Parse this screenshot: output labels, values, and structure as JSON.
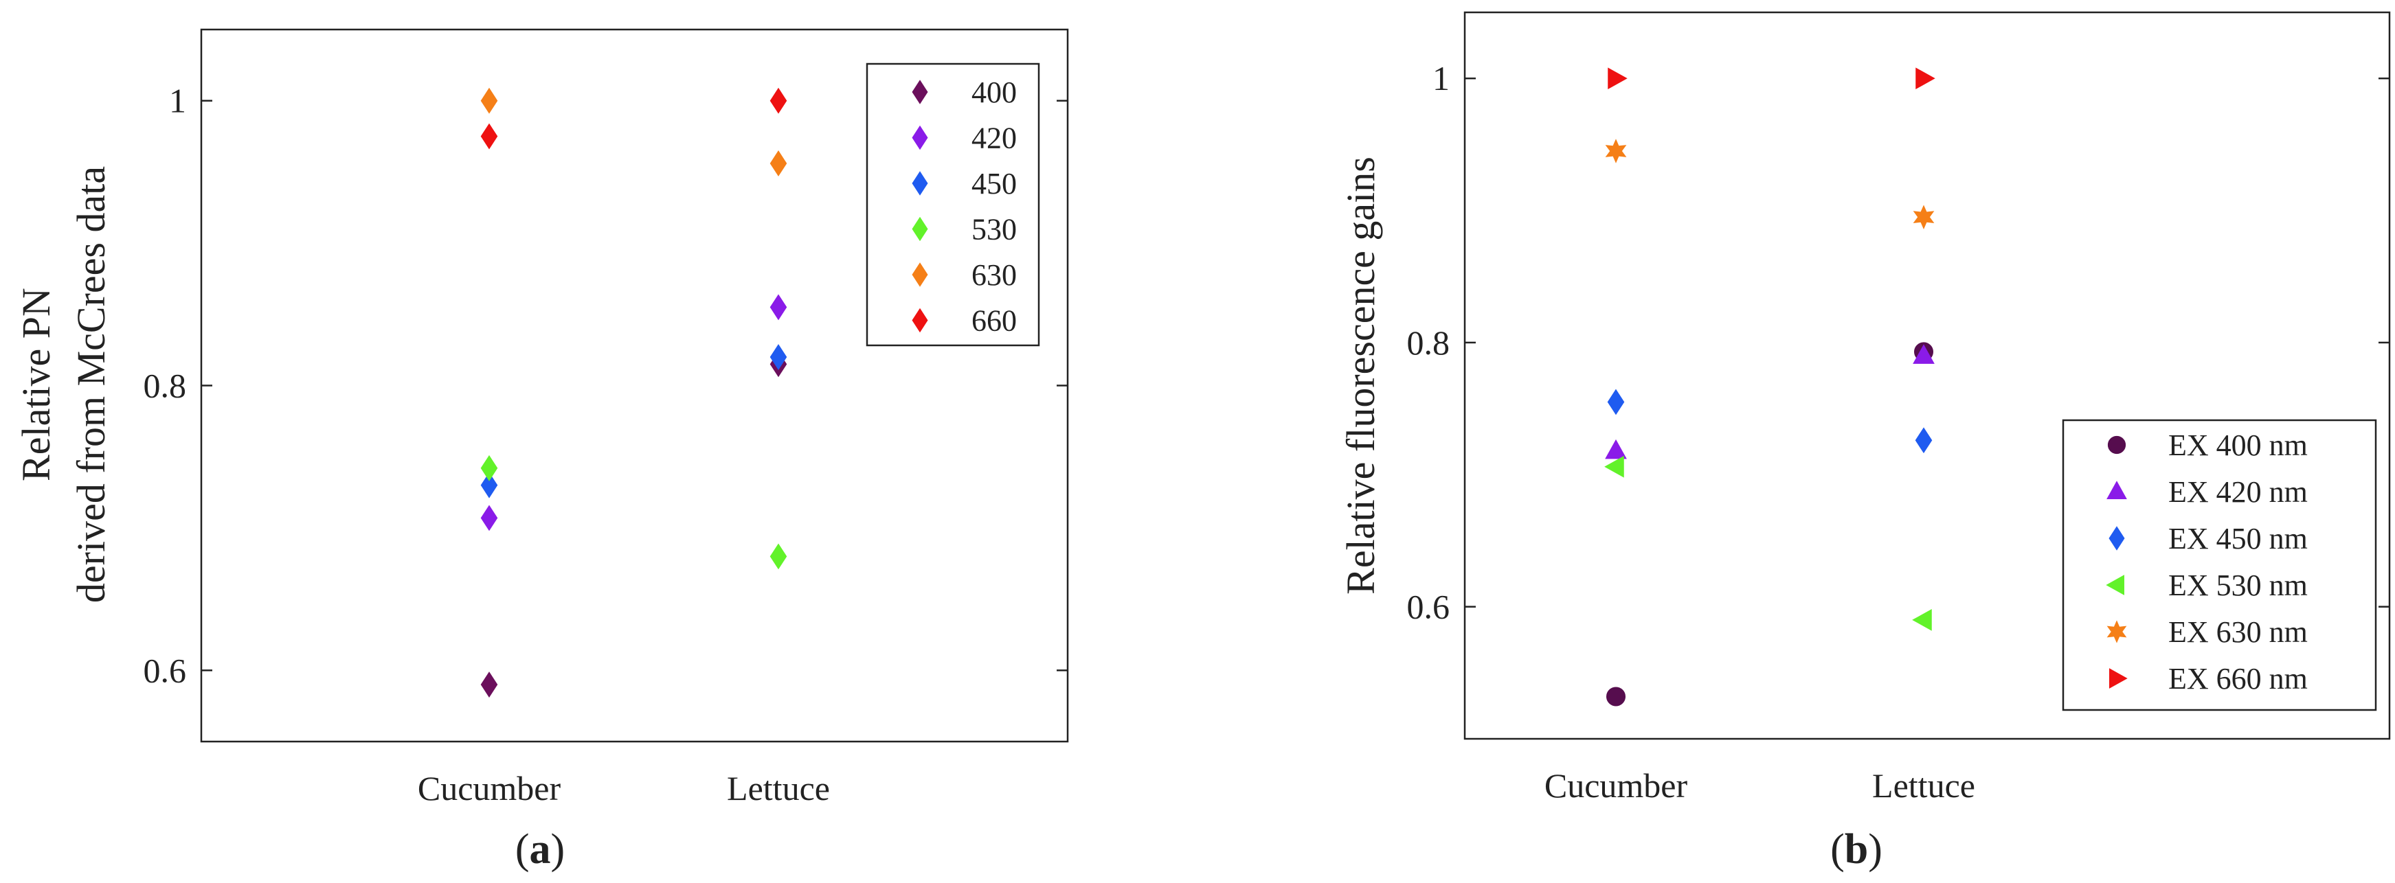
{
  "chart_data": [
    {
      "id": "a",
      "type": "scatter",
      "panel_label": "a",
      "categories": [
        "Cucumber",
        "Lettuce"
      ],
      "ylabel": [
        "Relative PN",
        "derived from McCrees data"
      ],
      "ylim": [
        0.55,
        1.05
      ],
      "yticks": [
        0.6,
        0.8,
        1
      ],
      "ytick_labels": [
        "0.6",
        "0.8",
        "1"
      ],
      "legend_position": "top-right",
      "series": [
        {
          "name": "400",
          "marker": "diamond",
          "color": "#6b0f5c",
          "values": [
            0.59,
            0.815
          ]
        },
        {
          "name": "420",
          "marker": "diamond",
          "color": "#8a1be8",
          "values": [
            0.707,
            0.855
          ]
        },
        {
          "name": "450",
          "marker": "diamond",
          "color": "#1f5bf0",
          "values": [
            0.73,
            0.82
          ]
        },
        {
          "name": "530",
          "marker": "diamond",
          "color": "#62f22a",
          "values": [
            0.742,
            0.68
          ]
        },
        {
          "name": "630",
          "marker": "diamond",
          "color": "#f57f17",
          "values": [
            1.0,
            0.956
          ]
        },
        {
          "name": "660",
          "marker": "diamond",
          "color": "#ee1111",
          "values": [
            0.975,
            1.0
          ]
        }
      ]
    },
    {
      "id": "b",
      "type": "scatter",
      "panel_label": "b",
      "categories": [
        "Cucumber",
        "Lettuce"
      ],
      "ylabel": [
        "Relative fluorescence gains"
      ],
      "ylim": [
        0.5,
        1.05
      ],
      "yticks": [
        0.6,
        0.8,
        1
      ],
      "ytick_labels": [
        "0.6",
        "0.8",
        "1"
      ],
      "legend_position": "bottom-right",
      "series": [
        {
          "name": "EX 400 nm",
          "marker": "circle",
          "color": "#560d4e",
          "values": [
            0.532,
            0.793
          ]
        },
        {
          "name": "EX 420 nm",
          "marker": "triangle-up",
          "color": "#8a1be8",
          "values": [
            0.718,
            0.79
          ]
        },
        {
          "name": "EX 450 nm",
          "marker": "diamond",
          "color": "#1f5bf0",
          "values": [
            0.755,
            0.726
          ]
        },
        {
          "name": "EX 530 nm",
          "marker": "triangle-left",
          "color": "#62f22a",
          "values": [
            0.706,
            0.59
          ]
        },
        {
          "name": "EX 630 nm",
          "marker": "hexagram",
          "color": "#f57f17",
          "values": [
            0.945,
            0.895
          ]
        },
        {
          "name": "EX 660 nm",
          "marker": "triangle-right",
          "color": "#ee1111",
          "values": [
            1.0,
            1.0
          ]
        }
      ]
    }
  ]
}
